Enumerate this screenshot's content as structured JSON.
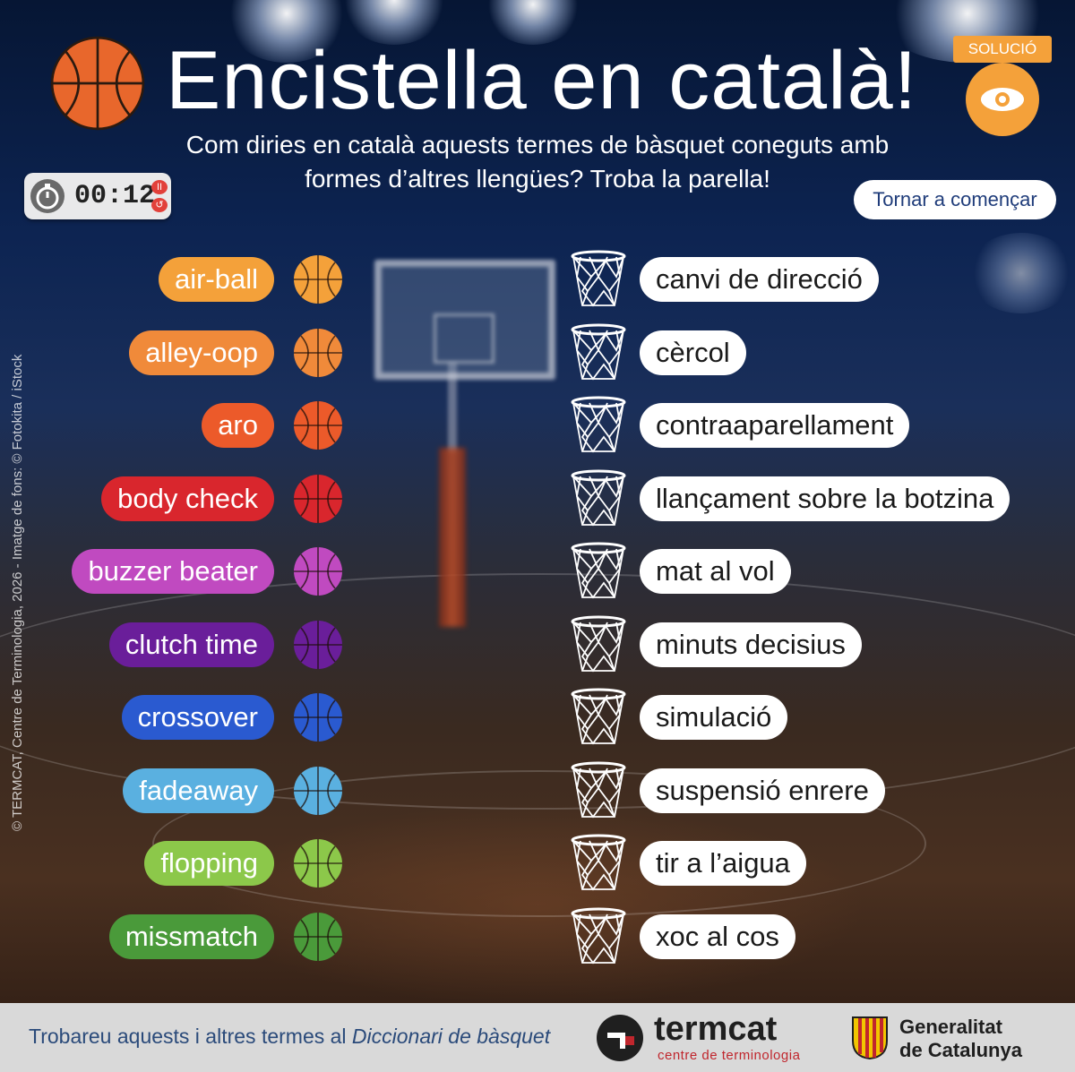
{
  "title": "Encistella en català!",
  "subtitle_line1": "Com diries en català aquests termes de bàsquet coneguts amb",
  "subtitle_line2": "formes d’altres llengües? Troba la parella!",
  "solution_label": "SOLUCIÓ",
  "timer": "00:12",
  "restart_label": "Tornar a començar",
  "credit": "© TERMCAT, Centre de Terminologia, 2026 - Imatge de fons: © Fotokita / iStock",
  "terms": [
    {
      "label": "air-ball",
      "color": "#f4a13a"
    },
    {
      "label": "alley-oop",
      "color": "#f08a3a"
    },
    {
      "label": "aro",
      "color": "#ec5a2a"
    },
    {
      "label": "body check",
      "color": "#d9262d"
    },
    {
      "label": "buzzer beater",
      "color": "#c04ac0"
    },
    {
      "label": "clutch time",
      "color": "#6a1e9a"
    },
    {
      "label": "crossover",
      "color": "#2a5ad0"
    },
    {
      "label": "fadeaway",
      "color": "#5ab0e0"
    },
    {
      "label": "flopping",
      "color": "#8cc84a"
    },
    {
      "label": "missmatch",
      "color": "#4a9a3a"
    }
  ],
  "answers": [
    "canvi de direcció",
    "cèrcol",
    "contraaparellament",
    "llançament sobre la botzina",
    "mat al vol",
    "minuts decisius",
    "simulació",
    "suspensió enrere",
    "tir a l’aigua",
    "xoc al cos"
  ],
  "footer": {
    "text_prefix": "Trobareu aquests i altres termes al ",
    "text_italic": "Diccionari de bàsquet",
    "termcat_name": "termcat",
    "termcat_sub": "centre de terminologia",
    "gen_line1": "Generalitat",
    "gen_line2": "de Catalunya"
  },
  "icons": [
    "basketball-icon",
    "eye-icon",
    "stopwatch-icon",
    "pause-icon",
    "reset-icon",
    "hoop-icon"
  ]
}
